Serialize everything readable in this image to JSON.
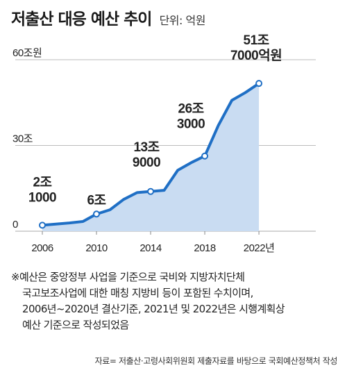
{
  "header": {
    "title": "저출산 대응 예산 추이",
    "unit": "단위: 억원"
  },
  "chart_data": {
    "type": "area",
    "x": [
      2006,
      2007,
      2008,
      2009,
      2010,
      2011,
      2012,
      2013,
      2014,
      2015,
      2016,
      2017,
      2018,
      2019,
      2020,
      2021,
      2022
    ],
    "series": [
      {
        "values": [
          21000,
          25000,
          29000,
          34000,
          60000,
          75000,
          111000,
          135000,
          139000,
          143000,
          213000,
          240000,
          263000,
          370000,
          458000,
          485000,
          517000
        ]
      }
    ],
    "ylim": [
      0,
      600000
    ],
    "y_ticks": [
      {
        "value": 0,
        "label": "0"
      },
      {
        "value": 300000,
        "label": "30조"
      },
      {
        "value": 600000,
        "label": "60조원"
      }
    ],
    "x_ticks": [
      {
        "value": 2006,
        "label": "2006"
      },
      {
        "value": 2010,
        "label": "2010"
      },
      {
        "value": 2014,
        "label": "2014"
      },
      {
        "value": 2018,
        "label": "2018"
      },
      {
        "value": 2022,
        "label": "2022년"
      }
    ],
    "annotations": [
      {
        "x": 2006,
        "lines": [
          "2조",
          "1000"
        ]
      },
      {
        "x": 2010,
        "lines": [
          "6조"
        ]
      },
      {
        "x": 2014,
        "lines": [
          "13조",
          "9000"
        ]
      },
      {
        "x": 2018,
        "lines": [
          "26조",
          "3000"
        ]
      },
      {
        "x": 2022,
        "lines": [
          "51조",
          "7000억원"
        ]
      }
    ],
    "colors": {
      "line": "#1f6fc5",
      "fill": "#c9dcf2",
      "marker_fill": "#ffffff",
      "grid": "#bbbbbb"
    },
    "grid": true
  },
  "note": {
    "line1": "※예산은 중앙정부 사업을 기준으로 국비와 지방자치단체",
    "line2": "국고보조사업에 대한 매칭 지방비 등이 포함된 수치이며,",
    "line3": "2006년~2020년 결산기준, 2021년 및 2022년은 시행계획상",
    "line4": "예산 기준으로 작성되었음"
  },
  "source": "자료= 저출산·고령사회위원회 제출자료를 바탕으로 국회예산정책처 작성"
}
